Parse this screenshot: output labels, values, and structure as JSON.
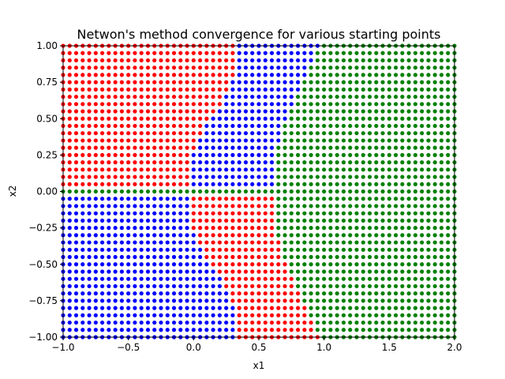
{
  "chart_data": {
    "type": "scatter",
    "title": "Netwon's method convergence for various starting points",
    "xlabel": "x1",
    "ylabel": "x2",
    "xlim": [
      -1.0,
      2.0
    ],
    "ylim": [
      -1.0,
      1.0
    ],
    "xticks": [
      -1.0,
      -0.5,
      0.0,
      0.5,
      1.0,
      1.5,
      2.0
    ],
    "xtick_labels": [
      "−1.0",
      "−0.5",
      "0.0",
      "0.5",
      "1.0",
      "1.5",
      "2.0"
    ],
    "yticks": [
      -1.0,
      -0.75,
      -0.5,
      -0.25,
      0.0,
      0.25,
      0.5,
      0.75,
      1.0
    ],
    "ytick_labels": [
      "−1.00",
      "−0.75",
      "−0.50",
      "−0.25",
      "0.00",
      "0.25",
      "0.50",
      "0.75",
      "1.00"
    ],
    "grid": false,
    "legend": "none",
    "grid_step": 0.05,
    "colors": {
      "red": "#ff0000",
      "blue": "#0000ff",
      "green": "#008000"
    },
    "regions": [
      {
        "color": "green",
        "description_rule": "x1 beyond basin boundary near 0.6-1.0, and the x2 = 0 line for x1 < 0.6",
        "boundary_x_by_abs_x2": [
          [
            0.0,
            0.62
          ],
          [
            0.25,
            0.62
          ],
          [
            0.5,
            0.72
          ],
          [
            0.75,
            0.84
          ],
          [
            0.9,
            0.92
          ],
          [
            1.0,
            0.98
          ]
        ]
      },
      {
        "color": "red",
        "quadrant": "upper-left",
        "inner_boundary_x_by_x2": [
          [
            0.0,
            0.0
          ],
          [
            0.2,
            -0.02
          ],
          [
            0.35,
            0.02
          ],
          [
            0.5,
            0.12
          ],
          [
            0.6,
            0.22
          ],
          [
            0.75,
            0.3
          ],
          [
            0.9,
            0.32
          ],
          [
            1.0,
            0.32
          ]
        ]
      },
      {
        "color": "blue",
        "quadrant": "lower-left"
      },
      {
        "color": "red",
        "quadrant": "lower-right-of-blue"
      },
      {
        "color": "blue",
        "quadrant": "upper-right-of-red"
      }
    ]
  }
}
